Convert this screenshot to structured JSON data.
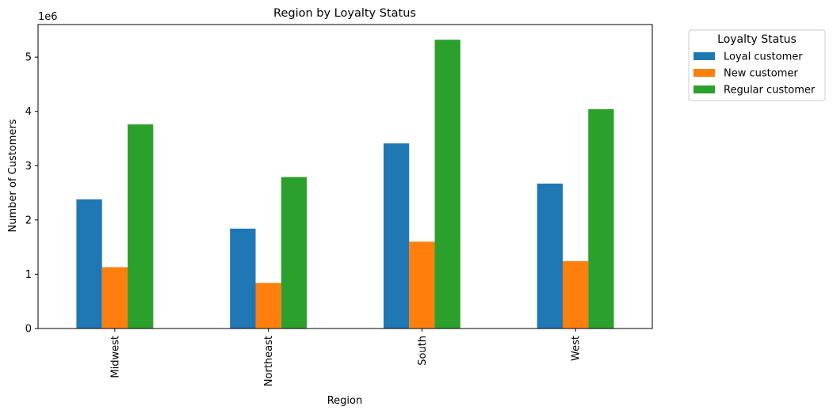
{
  "chart_data": {
    "type": "bar",
    "title": "Region by Loyalty Status",
    "xlabel": "Region",
    "ylabel": "Number of Customers",
    "y_offset_label": "1e6",
    "categories": [
      "Midwest",
      "Northeast",
      "South",
      "West"
    ],
    "series": [
      {
        "name": "Loyal customer",
        "color": "#1f77b4",
        "values": [
          2380000,
          1840000,
          3410000,
          2670000
        ]
      },
      {
        "name": "New customer",
        "color": "#ff7f0e",
        "values": [
          1130000,
          840000,
          1600000,
          1240000
        ]
      },
      {
        "name": "Regular customer",
        "color": "#2ca02c",
        "values": [
          3760000,
          2790000,
          5320000,
          4040000
        ]
      }
    ],
    "ylim": [
      0,
      5600000
    ],
    "yticks": [
      0,
      1000000,
      2000000,
      3000000,
      4000000,
      5000000
    ],
    "ytick_labels": [
      "0",
      "1",
      "2",
      "3",
      "4",
      "5"
    ],
    "legend": {
      "title": "Loyalty Status",
      "placement": "outside-top-right"
    },
    "grid": false
  }
}
